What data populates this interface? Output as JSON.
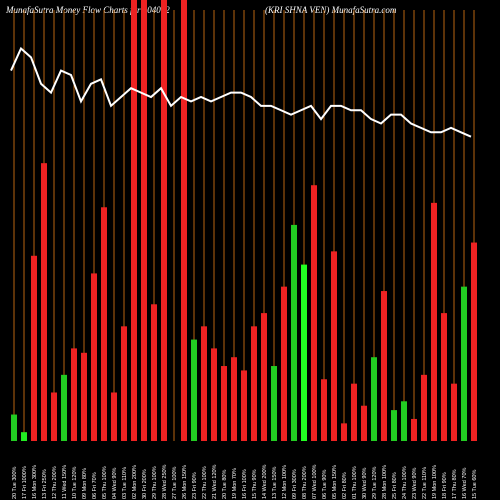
{
  "title_left": "MunafaSutra  Money Flow  Charts for 504092",
  "title_right": "(KRI                    SHNA VEN) MunafaSutra.com",
  "chart_data": {
    "type": "bar",
    "title": "MunafaSutra Money Flow Charts for 504092 (KRISHNA VEN) MunafaSutra.com",
    "ylim": [
      0,
      100
    ],
    "categories": [
      "05 Fri Mar 2025",
      "03 Mon Mar 2025",
      "28 Fri Feb 2025",
      "27 Thu Feb 2025",
      "25 Tue Feb 2025",
      "24 Mon Feb 2025",
      "21 Fri Feb 2025",
      "20 Thu Feb 2025",
      "19 Wed Feb 2025",
      "18 Tue Feb 2025",
      "17 Mon Feb 2025",
      "14 Fri Feb 2025",
      "13 Thu Feb 2025",
      "12 Wed Feb 2025",
      "11 Tue Feb 2025",
      "10 Mon Feb 2025",
      "07 Fri Feb 2025",
      "06 Thu Feb 2025",
      "05 Wed Feb 2025",
      "04 Tue Feb 2025",
      "03 Mon Feb 2025",
      "01 Sat Feb 2025",
      "31 Fri Jan 2025",
      "30 Thu Jan 2025",
      "29 Wed Jan 2025",
      "28 Tue Jan 2025",
      "27 Mon Jan 2025",
      "24 Fri Jan 2025",
      "23 Thu Jan 2025",
      "22 Wed Jan 2025",
      "21 Tue Jan 2025",
      "20 Mon Jan 2025",
      "17 Fri Jan 2025",
      "16 Thu Jan 2025",
      "15 Wed Jan 2025",
      "14 Tue Jan 2025",
      "13 Mon Jan 2025",
      "10 Fri Jan 2025",
      "09 Thu Jan 2025",
      "08 Wed Jan 2025",
      "07 Tue Jan 2025",
      "06 Mon Jan 2025",
      "03 Fri Jan 2025",
      "02 Thu Jan 2025",
      "01 Wed Jan 2025",
      "31 Tue Dec 2024",
      "30 Mon Dec 2024"
    ],
    "x_tick_labels": [
      "20 Tue 300%",
      "17 Fri 1000%",
      "16 Mon 300%",
      "13 Fri 250%",
      "12 Thu 200%",
      "11 Wed 150%",
      "10 Tue 120%",
      "09 Mon 80%",
      "06 Fri 70%",
      "05 Thu 100%",
      "04 Wed 90%",
      "03 Tue 110%",
      "02 Mon 200%",
      "30 Fri 200%",
      "29 Thu 100%",
      "28 Wed 250%",
      "27 Tue 100%",
      "26 Mon 150%",
      "23 Fri 90%",
      "22 Thu 100%",
      "21 Wed 120%",
      "20 Tue 80%",
      "19 Mon 70%",
      "16 Fri 100%",
      "15 Thu 90%",
      "14 Wed 200%",
      "13 Tue 150%",
      "12 Mon 100%",
      "09 Fri 300%",
      "08 Thu 200%",
      "07 Wed 100%",
      "06 Tue 90%",
      "05 Mon 150%",
      "02 Fri 80%",
      "01 Thu 100%",
      "30 Wed 90%",
      "29 Tue 120%",
      "28 Mon 100%",
      "25 Fri 80%",
      "24 Thu 100%",
      "23 Wed 90%",
      "22 Tue 110%",
      "19 Mon 100%",
      "18 Fri 90%",
      "17 Thu 80%",
      "16 Wed 70%",
      "15 Tue 60%"
    ],
    "series": [
      {
        "values": [
          6,
          2,
          42,
          63,
          11,
          15,
          21,
          20,
          38,
          53,
          11,
          26,
          100,
          100,
          31,
          100,
          0,
          100,
          23,
          26,
          21,
          17,
          19,
          16,
          26,
          29,
          17,
          35,
          49,
          40,
          58,
          14,
          43,
          4,
          13,
          8,
          19,
          34,
          7,
          9,
          5,
          15,
          54,
          29,
          13,
          35,
          45
        ],
        "bar_colors": [
          "#22cc22",
          "#22ee22",
          "#ee2222",
          "#ee2222",
          "#ee2222",
          "#22cc22",
          "#ee2222",
          "#ee2222",
          "#ee2222",
          "#ee2222",
          "#ee2222",
          "#ee2222",
          "#ee2222",
          "#ee2222",
          "#ee2222",
          "#ee2222",
          "#ee2222",
          "#ee2222",
          "#22cc22",
          "#ee2222",
          "#ee2222",
          "#ee2222",
          "#ee2222",
          "#ee2222",
          "#ee2222",
          "#ee2222",
          "#22cc22",
          "#ee2222",
          "#22cc22",
          "#22ff22",
          "#ee2222",
          "#ee2222",
          "#ee2222",
          "#ee2222",
          "#ee2222",
          "#ee2222",
          "#22cc22",
          "#ee2222",
          "#22cc22",
          "#22cc22",
          "#ee2222",
          "#ee2222",
          "#ee2222",
          "#ee2222",
          "#ee2222",
          "#22cc22",
          "#ee2222"
        ]
      },
      {
        "type": "line",
        "values": [
          84,
          89,
          87,
          81,
          79,
          84,
          83,
          77,
          81,
          82,
          76,
          78,
          80,
          79,
          78,
          80,
          76,
          78,
          77,
          78,
          77,
          78,
          79,
          79,
          78,
          76,
          76,
          75,
          74,
          75,
          76,
          73,
          76,
          76,
          75,
          75,
          73,
          72,
          74,
          74,
          72,
          71,
          70,
          70,
          71,
          70,
          69
        ]
      }
    ],
    "grid": true,
    "legend": "none"
  },
  "colors": {
    "background": "#000000",
    "grid": "#b8640f",
    "line": "#ffffff",
    "bar_red": "#ee2222",
    "bar_green": "#22cc22",
    "axis_text": "#ffffff"
  }
}
